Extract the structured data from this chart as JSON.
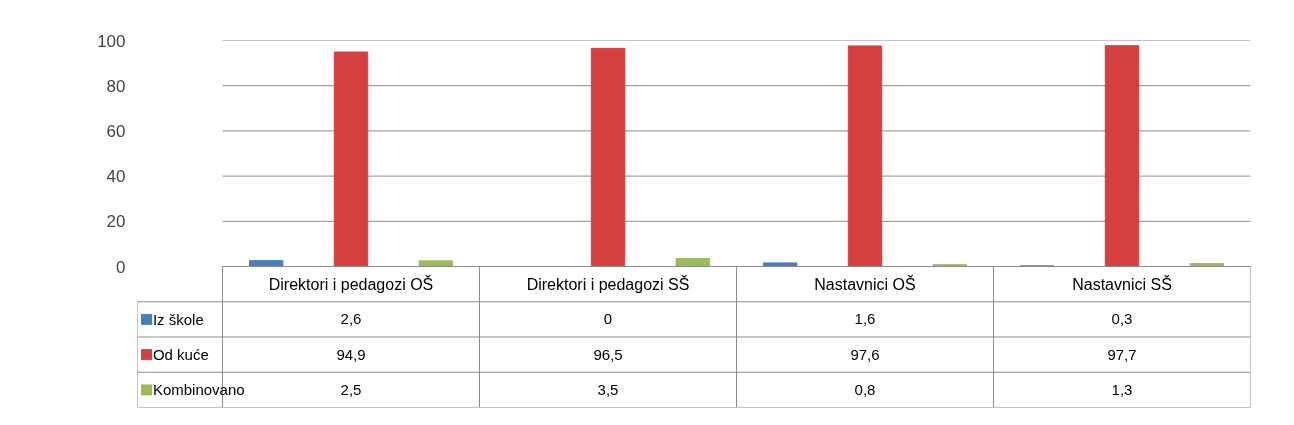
{
  "chart_data": {
    "type": "bar",
    "categories": [
      "Direktori i pedagozi OŠ",
      "Direktori i pedagozi SŠ",
      "Nastavnici OŠ",
      "Nastavnici SŠ"
    ],
    "series": [
      {
        "name": "Iz škole",
        "color": "#4a7ebb",
        "values": [
          2.6,
          0,
          1.6,
          0.3
        ],
        "value_labels": [
          "2,6",
          "0",
          "1,6",
          "0,3"
        ]
      },
      {
        "name": "Od kuće",
        "color": "#d43f3f",
        "values": [
          94.9,
          96.5,
          97.6,
          97.7
        ],
        "value_labels": [
          "94,9",
          "96,5",
          "97,6",
          "97,7"
        ]
      },
      {
        "name": "Kombinovano",
        "color": "#9bbb59",
        "values": [
          2.5,
          3.5,
          0.8,
          1.3
        ],
        "value_labels": [
          "2,5",
          "3,5",
          "0,8",
          "1,3"
        ]
      }
    ],
    "ylim": [
      0,
      100
    ],
    "yticks": [
      0,
      20,
      40,
      60,
      80,
      100
    ],
    "grid": "y",
    "legend": "bottom left"
  }
}
